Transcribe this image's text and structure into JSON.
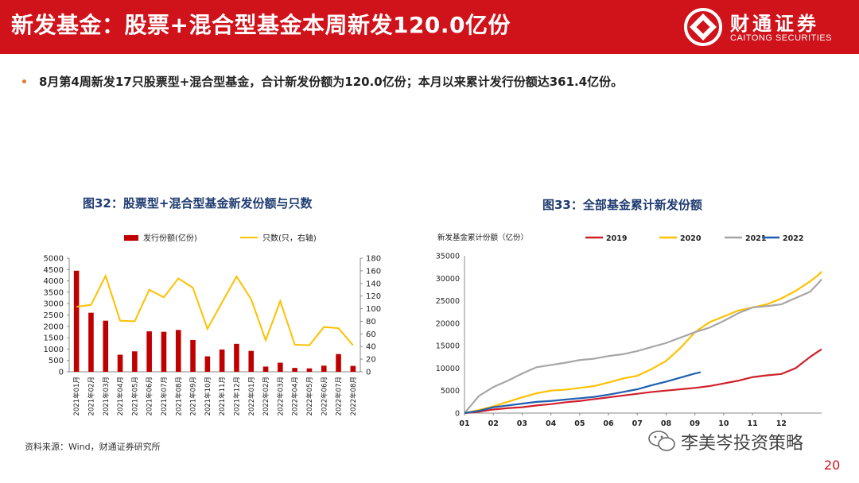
{
  "header": {
    "title": "新发基金：股票+混合型基金本周新发120.0亿份"
  },
  "logo": {
    "name_cn": "财通证券",
    "name_en": "CAITONG SECURITIES"
  },
  "bullet": {
    "text": "8月第4周新发17只股票型+混合型基金，合计新发份额为120.0亿份；本月以来累计发行份额达361.4亿份。"
  },
  "colors": {
    "brand_red": "#d0121b",
    "bar_red": "#c00000",
    "line_yellow": "#ffc000",
    "title_blue": "#1f3b70",
    "c2019": "#d0202a",
    "c2020": "#ffc000",
    "c2021": "#a6a6a6",
    "c2022": "#1f5fb0"
  },
  "source": "资料来源：Wind，财通证券研究所",
  "watermark": "李美岑投资策略",
  "page_number": "20",
  "chart_data": [
    {
      "type": "bar",
      "title": "图32：股票型+混合型基金新发份额与只数",
      "categories": [
        "2021年01月",
        "2021年02月",
        "2021年03月",
        "2021年04月",
        "2021年05月",
        "2021年06月",
        "2021年07月",
        "2021年08月",
        "2021年09月",
        "2021年10月",
        "2021年11月",
        "2021年12月",
        "2022年01月",
        "2022年02月",
        "2022年03月",
        "2022年04月",
        "2022年05月",
        "2022年06月",
        "2022年07月",
        "2022年08月"
      ],
      "series": [
        {
          "name": "发行份额(亿份)",
          "kind": "bar",
          "axis": "left",
          "values": [
            4450,
            2600,
            2250,
            750,
            900,
            1780,
            1760,
            1840,
            1400,
            680,
            980,
            1230,
            920,
            230,
            400,
            170,
            150,
            270,
            780,
            260
          ]
        },
        {
          "name": "只数(只，右轴)",
          "kind": "line",
          "axis": "right",
          "values": [
            103,
            106,
            152,
            81,
            80,
            130,
            118,
            148,
            133,
            68,
            110,
            151,
            115,
            50,
            112,
            43,
            42,
            71,
            69,
            42
          ]
        }
      ],
      "y_left": {
        "min": 0,
        "max": 5000,
        "ticks": [
          "0",
          "500",
          "1000",
          "1500",
          "2000",
          "2500",
          "3000",
          "3500",
          "4000",
          "4500",
          "5000"
        ]
      },
      "y_right": {
        "min": 0,
        "max": 180,
        "ticks": [
          "0",
          "20",
          "40",
          "60",
          "80",
          "100",
          "120",
          "140",
          "160",
          "180"
        ]
      },
      "legend": "top"
    },
    {
      "type": "line",
      "title": "图33：全部基金累计新发份额",
      "ylabel": "新发基金累计份额（亿份）",
      "x_ticks": [
        "01",
        "02",
        "03",
        "04",
        "05",
        "06",
        "07",
        "08",
        "09",
        "10",
        "11",
        "12"
      ],
      "y": {
        "min": 0,
        "max": 35000,
        "ticks": [
          "0",
          "5000",
          "10000",
          "15000",
          "20000",
          "25000",
          "30000",
          "35000"
        ]
      },
      "legend": "top",
      "series": [
        {
          "name": "2019",
          "x": [
            0,
            0.5,
            1,
            1.5,
            2,
            2.5,
            3,
            3.5,
            4,
            4.5,
            5,
            5.5,
            6,
            6.5,
            7,
            7.5,
            8,
            8.5,
            9,
            9.5,
            10,
            10.5,
            11,
            11.5,
            12,
            12.3,
            12.4
          ],
          "values": [
            0,
            300,
            800,
            1100,
            1300,
            1700,
            2000,
            2400,
            2700,
            3100,
            3500,
            3900,
            4300,
            4700,
            5000,
            5300,
            5600,
            6000,
            6600,
            7200,
            8000,
            8400,
            8700,
            10000,
            12500,
            13800,
            14200
          ]
        },
        {
          "name": "2020",
          "x": [
            0,
            0.5,
            1,
            1.5,
            2,
            2.5,
            3,
            3.5,
            4,
            4.5,
            5,
            5.5,
            6,
            6.5,
            7,
            7.5,
            8,
            8.5,
            9,
            9.5,
            10,
            10.5,
            11,
            11.5,
            12,
            12.3,
            12.4
          ],
          "values": [
            0,
            700,
            1500,
            2500,
            3500,
            4400,
            5000,
            5200,
            5600,
            6000,
            6800,
            7700,
            8300,
            9800,
            11600,
            14500,
            18000,
            20200,
            21500,
            22800,
            23500,
            24200,
            25500,
            27200,
            29300,
            30800,
            31500
          ]
        },
        {
          "name": "2021",
          "x": [
            0,
            0.5,
            1,
            1.5,
            2,
            2.5,
            3,
            3.5,
            4,
            4.5,
            5,
            5.5,
            6,
            6.5,
            7,
            7.5,
            8,
            8.5,
            9,
            9.5,
            10,
            10.5,
            11,
            11.5,
            12,
            12.3,
            12.4
          ],
          "values": [
            0,
            3800,
            5800,
            7200,
            8800,
            10200,
            10700,
            11200,
            11800,
            12100,
            12700,
            13100,
            13800,
            14700,
            15600,
            16800,
            18000,
            19000,
            20500,
            22200,
            23500,
            23800,
            24200,
            25600,
            27000,
            29000,
            29800
          ]
        },
        {
          "name": "2022",
          "x": [
            0,
            0.5,
            1,
            1.5,
            2,
            2.5,
            3,
            3.5,
            4,
            4.5,
            5,
            5.5,
            6,
            6.5,
            7,
            7.5,
            8,
            8.2
          ],
          "values": [
            0,
            500,
            1300,
            1700,
            2100,
            2500,
            2700,
            3000,
            3300,
            3600,
            4100,
            4700,
            5300,
            6200,
            7000,
            7900,
            8800,
            9100
          ]
        }
      ]
    }
  ]
}
